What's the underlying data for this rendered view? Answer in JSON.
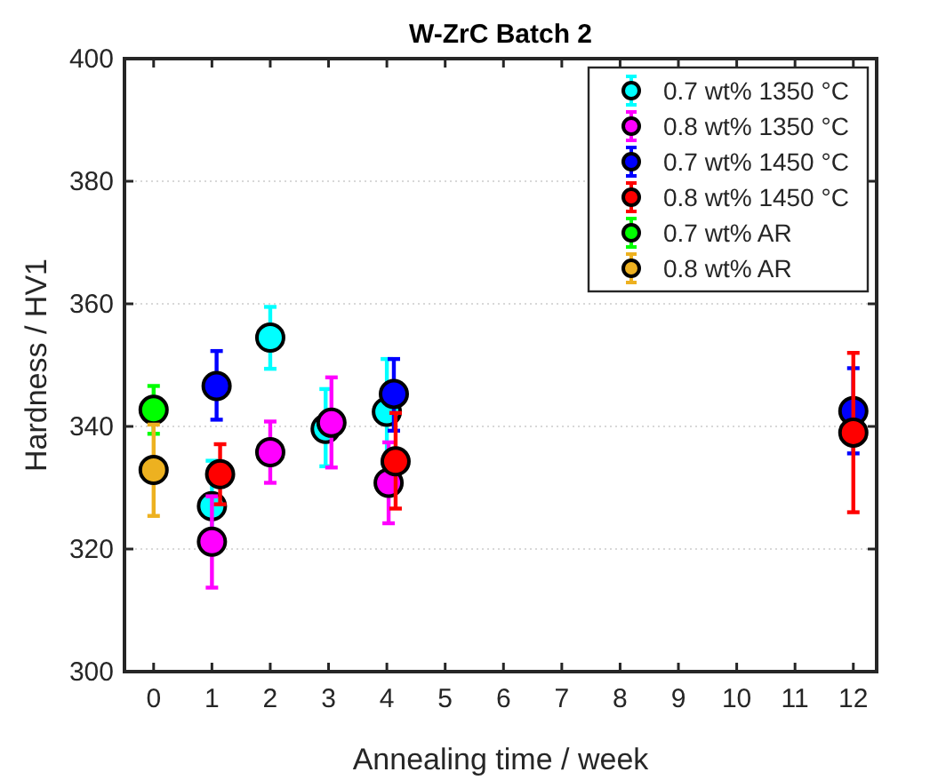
{
  "chart_data": {
    "type": "scatter",
    "title": "W-ZrC Batch 2",
    "xlabel": "Annealing time / week",
    "ylabel": "Hardness / HV1",
    "xlim": [
      -0.5,
      12.4
    ],
    "xticks": [
      0,
      1,
      2,
      3,
      4,
      5,
      6,
      7,
      8,
      9,
      10,
      11,
      12
    ],
    "ylim": [
      300,
      400
    ],
    "yticks": [
      300,
      320,
      340,
      360,
      380,
      400
    ],
    "grid": "y",
    "legend": "top right",
    "marker": "circle",
    "series": [
      {
        "name": "0.7 wt% 1350 °C",
        "color": "#00ffff",
        "x": [
          1,
          2,
          2.95,
          4
        ],
        "values": [
          327.0,
          354.5,
          339.6,
          342.4
        ],
        "errors": [
          [
            320,
            334.4
          ],
          [
            349.4,
            359.5
          ],
          [
            333.5,
            346.1
          ],
          [
            334,
            351
          ]
        ]
      },
      {
        "name": "0.8 wt% 1350 °C",
        "color": "#ff00ff",
        "x": [
          1,
          2,
          3.05,
          4.03
        ],
        "values": [
          321.2,
          335.8,
          340.6,
          330.8
        ],
        "errors": [
          [
            313.7,
            328.6
          ],
          [
            330.8,
            340.8
          ],
          [
            333.3,
            348
          ],
          [
            324.2,
            337.4
          ]
        ]
      },
      {
        "name": "0.7 wt% 1450 °C",
        "color": "#0000ff",
        "x": [
          1.08,
          4.12,
          12
        ],
        "values": [
          346.6,
          345.3,
          342.5
        ],
        "errors": [
          [
            341.1,
            352.3
          ],
          [
            339.3,
            351
          ],
          [
            335.6,
            349.5
          ]
        ]
      },
      {
        "name": "0.8 wt% 1450 °C",
        "color": "#ff0000",
        "x": [
          1.14,
          4.15,
          12
        ],
        "values": [
          332.2,
          334.3,
          339
        ],
        "errors": [
          [
            327.3,
            337.1
          ],
          [
            326.6,
            342.2
          ],
          [
            326,
            352
          ]
        ]
      },
      {
        "name": "0.7 wt% AR",
        "color": "#00ff00",
        "x": [
          0
        ],
        "values": [
          342.7
        ],
        "errors": [
          [
            338.8,
            346.6
          ]
        ]
      },
      {
        "name": "0.8 wt% AR",
        "color": "#edb120",
        "x": [
          0
        ],
        "values": [
          332.9
        ],
        "errors": [
          [
            325.4,
            340.3
          ]
        ]
      }
    ]
  }
}
